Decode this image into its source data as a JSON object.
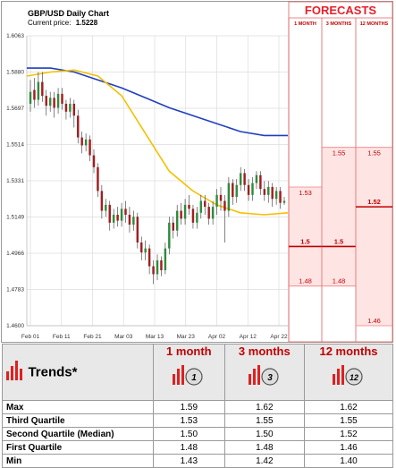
{
  "chart_data": {
    "type": "candlestick",
    "title": "GBP/USD Daily Chart",
    "current_price_label": "Current price:",
    "current_price": "1.5228",
    "y_ticks": [
      "1.6063",
      "1.5880",
      "1.5697",
      "1.5514",
      "1.5331",
      "1.5149",
      "1.4966",
      "1.4783",
      "1.4600"
    ],
    "x_ticks": [
      "Feb 01",
      "Feb 11",
      "Feb 21",
      "Mar 03",
      "Mar 13",
      "Mar 23",
      "Apr 02",
      "Apr 12",
      "Apr 22"
    ],
    "ylim": [
      1.46,
      1.6063
    ],
    "series": [
      {
        "name": "",
        "color": "#1f3fbf",
        "y": [
          1.59,
          1.59,
          1.588,
          1.584,
          1.58,
          1.575,
          1.57,
          1.566,
          1.562,
          1.558,
          1.556,
          1.556
        ]
      },
      {
        "name": "",
        "color": "#f5c000",
        "y": [
          1.586,
          1.588,
          1.589,
          1.586,
          1.576,
          1.557,
          1.538,
          1.528,
          1.521,
          1.517,
          1.516,
          1.517
        ]
      }
    ],
    "candles": [
      {
        "o": 1.572,
        "c": 1.578,
        "h": 1.584,
        "l": 1.568
      },
      {
        "o": 1.579,
        "c": 1.574,
        "h": 1.585,
        "l": 1.57
      },
      {
        "o": 1.574,
        "c": 1.583,
        "h": 1.588,
        "l": 1.571
      },
      {
        "o": 1.583,
        "c": 1.576,
        "h": 1.588,
        "l": 1.573
      },
      {
        "o": 1.576,
        "c": 1.571,
        "h": 1.579,
        "l": 1.566
      },
      {
        "o": 1.571,
        "c": 1.575,
        "h": 1.578,
        "l": 1.568
      },
      {
        "o": 1.575,
        "c": 1.57,
        "h": 1.578,
        "l": 1.565
      },
      {
        "o": 1.57,
        "c": 1.577,
        "h": 1.58,
        "l": 1.567
      },
      {
        "o": 1.577,
        "c": 1.572,
        "h": 1.58,
        "l": 1.569
      },
      {
        "o": 1.572,
        "c": 1.568,
        "h": 1.574,
        "l": 1.564
      },
      {
        "o": 1.568,
        "c": 1.572,
        "h": 1.575,
        "l": 1.565
      },
      {
        "o": 1.572,
        "c": 1.566,
        "h": 1.574,
        "l": 1.56
      },
      {
        "o": 1.566,
        "c": 1.555,
        "h": 1.569,
        "l": 1.552
      },
      {
        "o": 1.555,
        "c": 1.551,
        "h": 1.558,
        "l": 1.547
      },
      {
        "o": 1.551,
        "c": 1.554,
        "h": 1.557,
        "l": 1.548
      },
      {
        "o": 1.554,
        "c": 1.546,
        "h": 1.556,
        "l": 1.543
      },
      {
        "o": 1.546,
        "c": 1.54,
        "h": 1.549,
        "l": 1.537
      },
      {
        "o": 1.54,
        "c": 1.528,
        "h": 1.542,
        "l": 1.525
      },
      {
        "o": 1.528,
        "c": 1.518,
        "h": 1.531,
        "l": 1.514
      },
      {
        "o": 1.518,
        "c": 1.521,
        "h": 1.524,
        "l": 1.515
      },
      {
        "o": 1.521,
        "c": 1.512,
        "h": 1.523,
        "l": 1.508
      },
      {
        "o": 1.512,
        "c": 1.516,
        "h": 1.519,
        "l": 1.509
      },
      {
        "o": 1.516,
        "c": 1.513,
        "h": 1.52,
        "l": 1.51
      },
      {
        "o": 1.513,
        "c": 1.519,
        "h": 1.522,
        "l": 1.51
      },
      {
        "o": 1.519,
        "c": 1.516,
        "h": 1.523,
        "l": 1.512
      },
      {
        "o": 1.516,
        "c": 1.511,
        "h": 1.52,
        "l": 1.507
      },
      {
        "o": 1.511,
        "c": 1.515,
        "h": 1.518,
        "l": 1.508
      },
      {
        "o": 1.515,
        "c": 1.502,
        "h": 1.517,
        "l": 1.499
      },
      {
        "o": 1.502,
        "c": 1.497,
        "h": 1.505,
        "l": 1.493
      },
      {
        "o": 1.497,
        "c": 1.499,
        "h": 1.503,
        "l": 1.493
      },
      {
        "o": 1.499,
        "c": 1.49,
        "h": 1.501,
        "l": 1.486
      },
      {
        "o": 1.49,
        "c": 1.486,
        "h": 1.493,
        "l": 1.481
      },
      {
        "o": 1.486,
        "c": 1.493,
        "h": 1.496,
        "l": 1.483
      },
      {
        "o": 1.493,
        "c": 1.488,
        "h": 1.495,
        "l": 1.485
      },
      {
        "o": 1.488,
        "c": 1.499,
        "h": 1.502,
        "l": 1.486
      },
      {
        "o": 1.499,
        "c": 1.512,
        "h": 1.515,
        "l": 1.496
      },
      {
        "o": 1.512,
        "c": 1.508,
        "h": 1.515,
        "l": 1.504
      },
      {
        "o": 1.508,
        "c": 1.518,
        "h": 1.521,
        "l": 1.505
      },
      {
        "o": 1.518,
        "c": 1.514,
        "h": 1.522,
        "l": 1.511
      },
      {
        "o": 1.514,
        "c": 1.521,
        "h": 1.524,
        "l": 1.511
      },
      {
        "o": 1.521,
        "c": 1.519,
        "h": 1.526,
        "l": 1.516
      },
      {
        "o": 1.519,
        "c": 1.512,
        "h": 1.521,
        "l": 1.509
      },
      {
        "o": 1.512,
        "c": 1.517,
        "h": 1.52,
        "l": 1.509
      },
      {
        "o": 1.517,
        "c": 1.523,
        "h": 1.526,
        "l": 1.514
      },
      {
        "o": 1.523,
        "c": 1.52,
        "h": 1.526,
        "l": 1.516
      },
      {
        "o": 1.52,
        "c": 1.514,
        "h": 1.522,
        "l": 1.511
      },
      {
        "o": 1.514,
        "c": 1.52,
        "h": 1.523,
        "l": 1.511
      },
      {
        "o": 1.52,
        "c": 1.526,
        "h": 1.529,
        "l": 1.516
      },
      {
        "o": 1.526,
        "c": 1.523,
        "h": 1.53,
        "l": 1.518
      },
      {
        "o": 1.523,
        "c": 1.518,
        "h": 1.526,
        "l": 1.502
      },
      {
        "o": 1.518,
        "c": 1.532,
        "h": 1.535,
        "l": 1.515
      },
      {
        "o": 1.532,
        "c": 1.525,
        "h": 1.534,
        "l": 1.521
      },
      {
        "o": 1.525,
        "c": 1.531,
        "h": 1.534,
        "l": 1.522
      },
      {
        "o": 1.531,
        "c": 1.537,
        "h": 1.54,
        "l": 1.528
      },
      {
        "o": 1.537,
        "c": 1.531,
        "h": 1.539,
        "l": 1.528
      },
      {
        "o": 1.531,
        "c": 1.526,
        "h": 1.534,
        "l": 1.523
      },
      {
        "o": 1.526,
        "c": 1.532,
        "h": 1.535,
        "l": 1.523
      },
      {
        "o": 1.532,
        "c": 1.536,
        "h": 1.538,
        "l": 1.529
      },
      {
        "o": 1.536,
        "c": 1.529,
        "h": 1.538,
        "l": 1.526
      },
      {
        "o": 1.529,
        "c": 1.526,
        "h": 1.533,
        "l": 1.523
      },
      {
        "o": 1.526,
        "c": 1.53,
        "h": 1.533,
        "l": 1.522
      },
      {
        "o": 1.53,
        "c": 1.524,
        "h": 1.532,
        "l": 1.52
      },
      {
        "o": 1.524,
        "c": 1.528,
        "h": 1.53,
        "l": 1.521
      },
      {
        "o": 1.528,
        "c": 1.522,
        "h": 1.53,
        "l": 1.519
      },
      {
        "o": 1.522,
        "c": 1.523,
        "h": 1.525,
        "l": 1.521
      }
    ],
    "forecasts": {
      "header": "FORECASTS",
      "columns": [
        "1 MONTH",
        "3 MONTHS",
        "12 MONTHS"
      ],
      "values": [
        {
          "q3": "1.53",
          "median": "1.5",
          "q1": "1.48"
        },
        {
          "q3": "1.55",
          "median": "1.5",
          "q1": "1.48"
        },
        {
          "q3": "1.55",
          "median": "1.52",
          "q1": "1.46"
        }
      ],
      "levels": [
        {
          "q3": 1.53,
          "median": 1.5,
          "q1": 1.48
        },
        {
          "q3": 1.55,
          "median": 1.5,
          "q1": 1.48
        },
        {
          "q3": 1.55,
          "median": 1.52,
          "q1": 1.46
        }
      ]
    }
  },
  "trends": {
    "label": "Trends*",
    "columns": [
      "1 month",
      "3 months",
      "12 months"
    ],
    "badges": [
      "1",
      "3",
      "12"
    ],
    "rows": [
      {
        "label": "Max",
        "v": [
          "1.59",
          "1.62",
          "1.62"
        ]
      },
      {
        "label": "Third Quartile",
        "v": [
          "1.53",
          "1.55",
          "1.55"
        ]
      },
      {
        "label": "Second Quartile (Median)",
        "v": [
          "1.50",
          "1.50",
          "1.52"
        ]
      },
      {
        "label": "First Quartile",
        "v": [
          "1.48",
          "1.48",
          "1.46"
        ]
      },
      {
        "label": "Min",
        "v": [
          "1.43",
          "1.42",
          "1.40"
        ]
      }
    ]
  },
  "colors": {
    "bull": "#2e8b3e",
    "bear": "#a11d21",
    "forecast_shade": "#ffe4e4",
    "forecast_red": "#c00000"
  }
}
